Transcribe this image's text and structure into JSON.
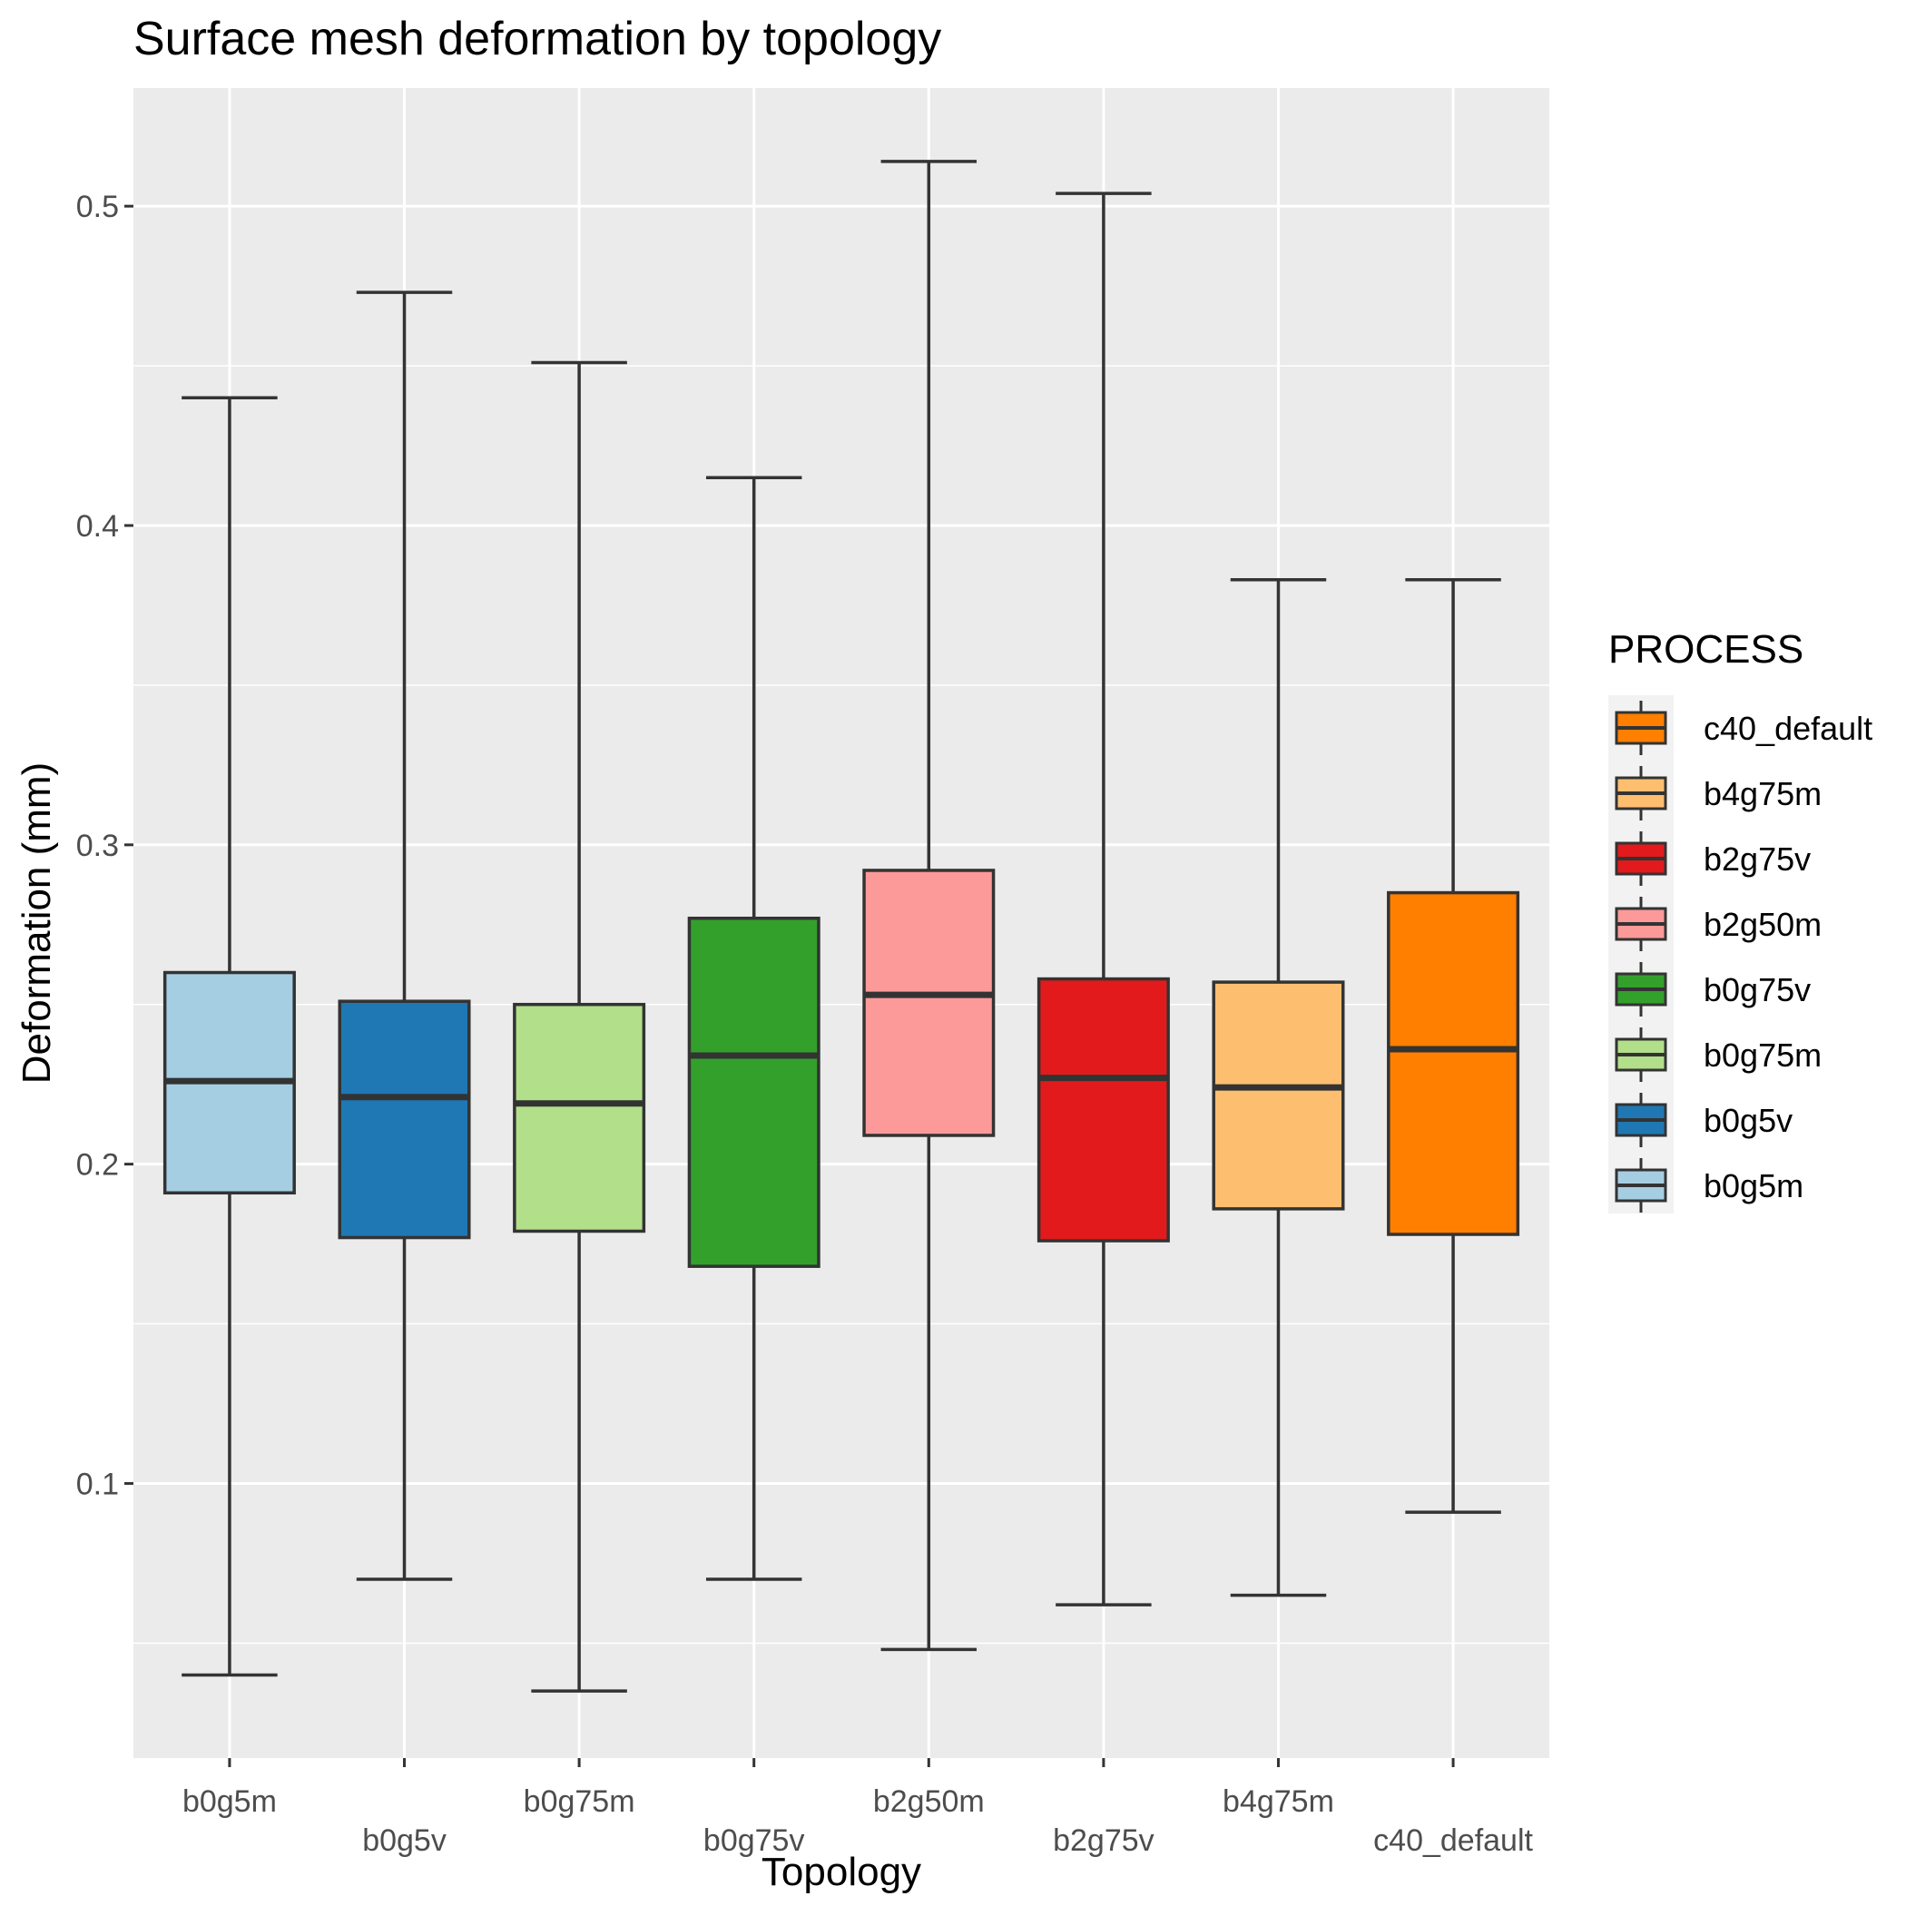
{
  "chart_data": {
    "type": "boxplot",
    "title": "Surface mesh deformation by topology",
    "xlabel": "Topology",
    "ylabel": "Deformation (mm)",
    "ylim": [
      0.014,
      0.537
    ],
    "y_ticks": [
      0.1,
      0.2,
      0.3,
      0.4,
      0.5
    ],
    "y_tick_labels": [
      "0.1",
      "0.2",
      "0.3",
      "0.4",
      "0.5"
    ],
    "grid": true,
    "categories": [
      "b0g5m",
      "b0g5v",
      "b0g75m",
      "b0g75v",
      "b2g50m",
      "b2g75v",
      "b4g75m",
      "c40_default"
    ],
    "boxes": [
      {
        "category": "b0g5m",
        "min": 0.04,
        "q1": 0.191,
        "median": 0.226,
        "q3": 0.26,
        "max": 0.44,
        "color": "#a6cee3"
      },
      {
        "category": "b0g5v",
        "min": 0.07,
        "q1": 0.177,
        "median": 0.221,
        "q3": 0.251,
        "max": 0.473,
        "color": "#1f78b4"
      },
      {
        "category": "b0g75m",
        "min": 0.035,
        "q1": 0.179,
        "median": 0.219,
        "q3": 0.25,
        "max": 0.451,
        "color": "#b2df8a"
      },
      {
        "category": "b0g75v",
        "min": 0.07,
        "q1": 0.168,
        "median": 0.234,
        "q3": 0.277,
        "max": 0.415,
        "color": "#33a02c"
      },
      {
        "category": "b2g50m",
        "min": 0.048,
        "q1": 0.209,
        "median": 0.253,
        "q3": 0.292,
        "max": 0.514,
        "color": "#fb9a99"
      },
      {
        "category": "b2g75v",
        "min": 0.062,
        "q1": 0.176,
        "median": 0.227,
        "q3": 0.258,
        "max": 0.504,
        "color": "#e31a1c"
      },
      {
        "category": "b4g75m",
        "min": 0.065,
        "q1": 0.186,
        "median": 0.224,
        "q3": 0.257,
        "max": 0.383,
        "color": "#fdbf6f"
      },
      {
        "category": "c40_default",
        "min": 0.091,
        "q1": 0.178,
        "median": 0.236,
        "q3": 0.285,
        "max": 0.383,
        "color": "#ff7f00"
      }
    ],
    "legend": {
      "title": "PROCESS",
      "position": "right",
      "entries": [
        {
          "label": "c40_default",
          "color": "#ff7f00"
        },
        {
          "label": "b4g75m",
          "color": "#fdbf6f"
        },
        {
          "label": "b2g75v",
          "color": "#e31a1c"
        },
        {
          "label": "b2g50m",
          "color": "#fb9a99"
        },
        {
          "label": "b0g75v",
          "color": "#33a02c"
        },
        {
          "label": "b0g75m",
          "color": "#b2df8a"
        },
        {
          "label": "b0g5v",
          "color": "#1f78b4"
        },
        {
          "label": "b0g5m",
          "color": "#a6cee3"
        }
      ]
    },
    "colors": {
      "panel_background": "#ebebeb",
      "grid": "#ffffff",
      "outline": "#333333",
      "tick_text": "#4d4d4d"
    }
  }
}
